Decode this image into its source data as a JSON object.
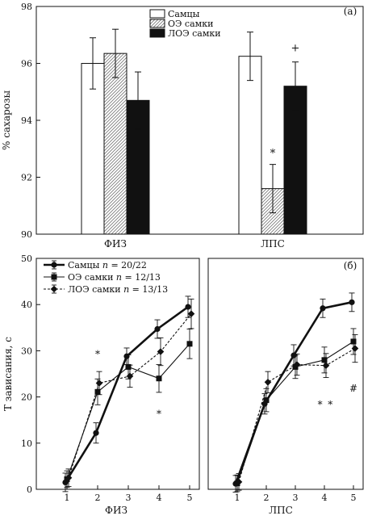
{
  "chart_data": [
    {
      "type": "bar",
      "panel_label": "(а)",
      "ylabel": "% сахарозы",
      "ylim": [
        90,
        98
      ],
      "yticks": [
        "90",
        "92",
        "94",
        "96",
        "98"
      ],
      "categories": [
        "ФИЗ",
        "ЛПС"
      ],
      "legend_position": "top-right",
      "series": [
        {
          "name": "Самцы",
          "pattern": "white",
          "values": [
            96.0,
            96.25
          ],
          "errors": [
            0.9,
            0.85
          ]
        },
        {
          "name": "ОЭ самки",
          "pattern": "hatched",
          "values": [
            96.35,
            91.6
          ],
          "errors": [
            0.85,
            0.85
          ]
        },
        {
          "name": "ЛОЭ самки",
          "pattern": "black",
          "values": [
            94.7,
            95.2
          ],
          "errors": [
            1.0,
            0.85
          ]
        }
      ],
      "annotations": [
        {
          "text": "*",
          "category": "ЛПС",
          "series": 1,
          "y": 92.9
        },
        {
          "text": "+",
          "category": "ЛПС",
          "series": 2,
          "y": 96.6
        }
      ]
    },
    {
      "type": "line",
      "panel_label": "(б)",
      "ylabel": "Т зависания, с",
      "ylim": [
        0,
        50
      ],
      "yticks": [
        "0",
        "10",
        "20",
        "30",
        "40",
        "50"
      ],
      "legend_position": "top-left",
      "panels": [
        {
          "xlabel": "ФИЗ",
          "x": [
            1,
            2,
            3,
            4,
            5
          ],
          "xticks": [
            "1",
            "2",
            "3",
            "4",
            "5"
          ],
          "series": [
            {
              "name": "Самцы",
              "n": "n",
              "n_text": " = 20/22",
              "style": "solid-thick",
              "marker": "circle",
              "values": [
                1.5,
                12.2,
                28.8,
                34.7,
                39.5
              ],
              "errors": [
                2.0,
                2.2,
                1.8,
                2.0,
                2.3
              ]
            },
            {
              "name": "ОЭ самки",
              "n": "n",
              "n_text": " = 12/13",
              "style": "solid-thin",
              "marker": "square",
              "values": [
                2.2,
                21.1,
                26.5,
                24.0,
                31.5
              ],
              "errors": [
                1.8,
                2.8,
                2.6,
                3.0,
                3.2
              ]
            },
            {
              "name": "ЛОЭ самки",
              "n": "n",
              "n_text": " = 13/13",
              "style": "dashed",
              "marker": "diamond",
              "values": [
                2.5,
                23.0,
                24.5,
                29.8,
                38.0
              ],
              "errors": [
                1.9,
                2.5,
                2.4,
                3.0,
                3.2
              ]
            }
          ],
          "annotations": [
            {
              "text": "*",
              "x": 2,
              "y": 29.5
            },
            {
              "text": "*",
              "x": 4,
              "y": 16.5
            }
          ]
        },
        {
          "xlabel": "ЛПС",
          "x": [
            1,
            2,
            3,
            4,
            5
          ],
          "xticks": [
            "1",
            "2",
            "3",
            "4",
            "5"
          ],
          "series": [
            {
              "name": "Самцы",
              "values": [
                1.2,
                18.5,
                29.0,
                39.2,
                40.5
              ],
              "errors": [
                1.8,
                2.2,
                2.3,
                2.0,
                2.0
              ]
            },
            {
              "name": "ОЭ самки",
              "values": [
                1.3,
                19.3,
                26.5,
                28.0,
                32.0
              ],
              "errors": [
                1.8,
                2.5,
                2.5,
                2.8,
                2.8
              ]
            },
            {
              "name": "ЛОЭ самки",
              "values": [
                1.6,
                23.2,
                27.0,
                26.8,
                30.5
              ],
              "errors": [
                1.8,
                2.3,
                2.3,
                2.6,
                3.0
              ]
            }
          ],
          "annotations": [
            {
              "text": "*",
              "x": 3.85,
              "y": 18.5
            },
            {
              "text": "*",
              "x": 4.2,
              "y": 18.5
            },
            {
              "text": "#",
              "x": 5,
              "y": 22
            }
          ]
        }
      ]
    }
  ]
}
